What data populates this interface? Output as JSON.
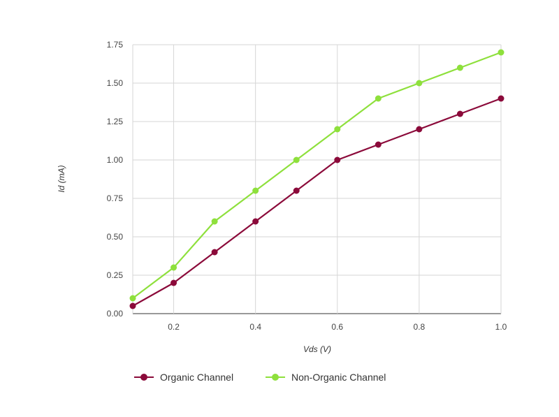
{
  "chart_data": {
    "type": "line",
    "xlabel": "Vds (V)",
    "ylabel": "Id (mA)",
    "xlim": [
      0.1,
      1.0
    ],
    "ylim": [
      0,
      1.75
    ],
    "x_ticks": [
      "0.2",
      "0.4",
      "0.6",
      "0.8",
      "1.0"
    ],
    "y_ticks": [
      "0.00",
      "0.25",
      "0.50",
      "0.75",
      "1.00",
      "1.25",
      "1.50",
      "1.75"
    ],
    "grid": true,
    "legend_position": "bottom",
    "x": [
      0.1,
      0.2,
      0.3,
      0.4,
      0.5,
      0.6,
      0.7,
      0.8,
      0.9,
      1.0
    ],
    "series": [
      {
        "name": "Organic Channel",
        "color": "#8b0a3a",
        "values": [
          0.05,
          0.2,
          0.4,
          0.6,
          0.8,
          1.0,
          1.1,
          1.2,
          1.3,
          1.4
        ]
      },
      {
        "name": "Non-Organic Channel",
        "color": "#8ee03c",
        "values": [
          0.1,
          0.3,
          0.6,
          0.8,
          1.0,
          1.2,
          1.4,
          1.5,
          1.6,
          1.7
        ]
      }
    ]
  }
}
